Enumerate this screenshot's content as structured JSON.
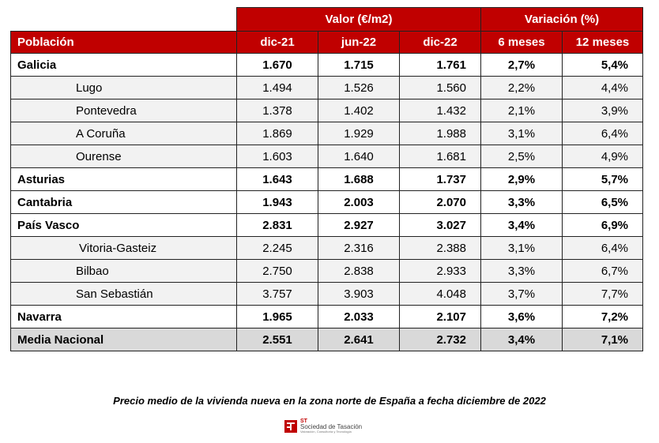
{
  "header": {
    "group_valor": "Valor (€/m2)",
    "group_variacion": "Variación (%)",
    "col_poblacion": "Población",
    "col_dic21": "dic-21",
    "col_jun22": "jun-22",
    "col_dic22": "dic-22",
    "col_6m": "6 meses",
    "col_12m": "12 meses"
  },
  "rows": [
    {
      "name": "Galicia",
      "dic21": "1.670",
      "jun22": "1.715",
      "dic22": "1.761",
      "m6": "2,7%",
      "m12": "5,4%"
    },
    {
      "name": "Lugo",
      "dic21": "1.494",
      "jun22": "1.526",
      "dic22": "1.560",
      "m6": "2,2%",
      "m12": "4,4%"
    },
    {
      "name": "Pontevedra",
      "dic21": "1.378",
      "jun22": "1.402",
      "dic22": "1.432",
      "m6": "2,1%",
      "m12": "3,9%"
    },
    {
      "name": "A Coruña",
      "dic21": "1.869",
      "jun22": "1.929",
      "dic22": "1.988",
      "m6": "3,1%",
      "m12": "6,4%"
    },
    {
      "name": "Ourense",
      "dic21": "1.603",
      "jun22": "1.640",
      "dic22": "1.681",
      "m6": "2,5%",
      "m12": "4,9%"
    },
    {
      "name": "Asturias",
      "dic21": "1.643",
      "jun22": "1.688",
      "dic22": "1.737",
      "m6": "2,9%",
      "m12": "5,7%"
    },
    {
      "name": "Cantabria",
      "dic21": "1.943",
      "jun22": "2.003",
      "dic22": "2.070",
      "m6": "3,3%",
      "m12": "6,5%"
    },
    {
      "name": "País Vasco",
      "dic21": "2.831",
      "jun22": "2.927",
      "dic22": "3.027",
      "m6": "3,4%",
      "m12": "6,9%"
    },
    {
      "name": "Vitoria-Gasteiz",
      "dic21": "2.245",
      "jun22": "2.316",
      "dic22": "2.388",
      "m6": "3,1%",
      "m12": "6,4%"
    },
    {
      "name": "Bilbao",
      "dic21": "2.750",
      "jun22": "2.838",
      "dic22": "2.933",
      "m6": "3,3%",
      "m12": "6,7%"
    },
    {
      "name": "San Sebastián",
      "dic21": "3.757",
      "jun22": "3.903",
      "dic22": "4.048",
      "m6": "3,7%",
      "m12": "7,7%"
    },
    {
      "name": "Navarra",
      "dic21": "1.965",
      "jun22": "2.033",
      "dic22": "2.107",
      "m6": "3,6%",
      "m12": "7,2%"
    },
    {
      "name": "Media Nacional",
      "dic21": "2.551",
      "jun22": "2.641",
      "dic22": "2.732",
      "m6": "3,4%",
      "m12": "7,1%"
    }
  ],
  "caption": "Precio medio de la vivienda nueva en la zona norte de España a fecha diciembre de 2022",
  "logo": {
    "st": "ST",
    "name": "Sociedad de Tasación",
    "tagline": "Valoración, Consultoría y Tecnología"
  },
  "colors": {
    "header_red": "#c00000",
    "sub_row_bg": "#f2f2f2",
    "total_row_bg": "#d9d9d9"
  }
}
